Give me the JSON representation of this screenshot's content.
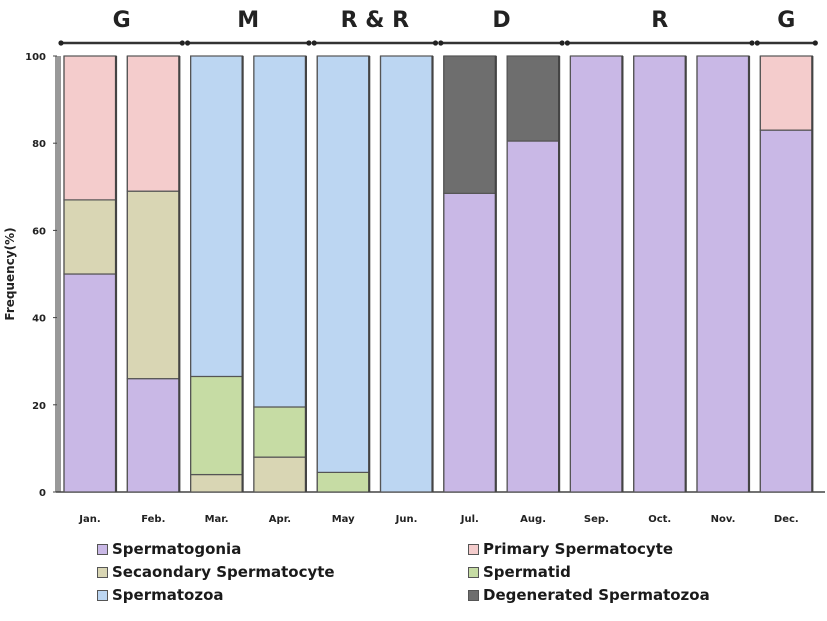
{
  "chart_data": {
    "type": "bar",
    "stacked": true,
    "title": "",
    "xlabel": "",
    "ylabel": "Frequency(%)",
    "ylim": [
      0,
      100
    ],
    "yticks": [
      0,
      20,
      40,
      60,
      80,
      100
    ],
    "grid": false,
    "legend_position": "bottom",
    "categories": [
      "Jan.",
      "Feb.",
      "Mar.",
      "Apr.",
      "May",
      "Jun.",
      "Jul.",
      "Aug.",
      "Sep.",
      "Oct.",
      "Nov.",
      "Dec."
    ],
    "series": [
      {
        "name": "Spermatogonia",
        "color": "#c9b8e6",
        "values": [
          50,
          26,
          0,
          0,
          0,
          0,
          68.5,
          80.5,
          100,
          100,
          100,
          83
        ]
      },
      {
        "name": "Primary Spermatocyte",
        "color": "#f4cccc",
        "values": [
          33,
          31,
          0,
          0,
          0,
          0,
          0,
          0,
          0,
          0,
          0,
          17
        ]
      },
      {
        "name": "Secaondary Spermatocyte",
        "color": "#d9d6b4",
        "values": [
          17,
          43,
          4,
          8,
          0,
          0,
          0,
          0,
          0,
          0,
          0,
          0
        ]
      },
      {
        "name": "Spermatid",
        "color": "#c6dca4",
        "values": [
          0,
          0,
          22.5,
          11.5,
          4.5,
          0,
          0,
          0,
          0,
          0,
          0,
          0
        ]
      },
      {
        "name": "Spermatozoa",
        "color": "#bcd6f2",
        "values": [
          0,
          0,
          73.5,
          80.5,
          95.5,
          100,
          0,
          0,
          0,
          0,
          0,
          0
        ]
      },
      {
        "name": "Degenerated Spermatozoa",
        "color": "#6e6e6e",
        "values": [
          0,
          0,
          0,
          0,
          0,
          0,
          31.5,
          19.5,
          0,
          0,
          0,
          0
        ]
      }
    ],
    "stack_order": [
      "Spermatogonia",
      "Secaondary Spermatocyte",
      "Spermatid",
      "Primary Spermatocyte",
      "Spermatozoa",
      "Degenerated Spermatozoa"
    ],
    "phases": [
      {
        "label": "G",
        "from": 0,
        "to": 1
      },
      {
        "label": "M",
        "from": 2,
        "to": 3
      },
      {
        "label": "R & R",
        "from": 4,
        "to": 5
      },
      {
        "label": "D",
        "from": 6,
        "to": 7
      },
      {
        "label": "R",
        "from": 8,
        "to": 10
      },
      {
        "label": "G",
        "from": 11,
        "to": 11
      }
    ],
    "legend_layout": [
      [
        "Spermatogonia",
        "Primary Spermatocyte"
      ],
      [
        "Secaondary Spermatocyte",
        "Spermatid"
      ],
      [
        "Spermatozoa",
        "Degenerated Spermatozoa"
      ]
    ]
  }
}
